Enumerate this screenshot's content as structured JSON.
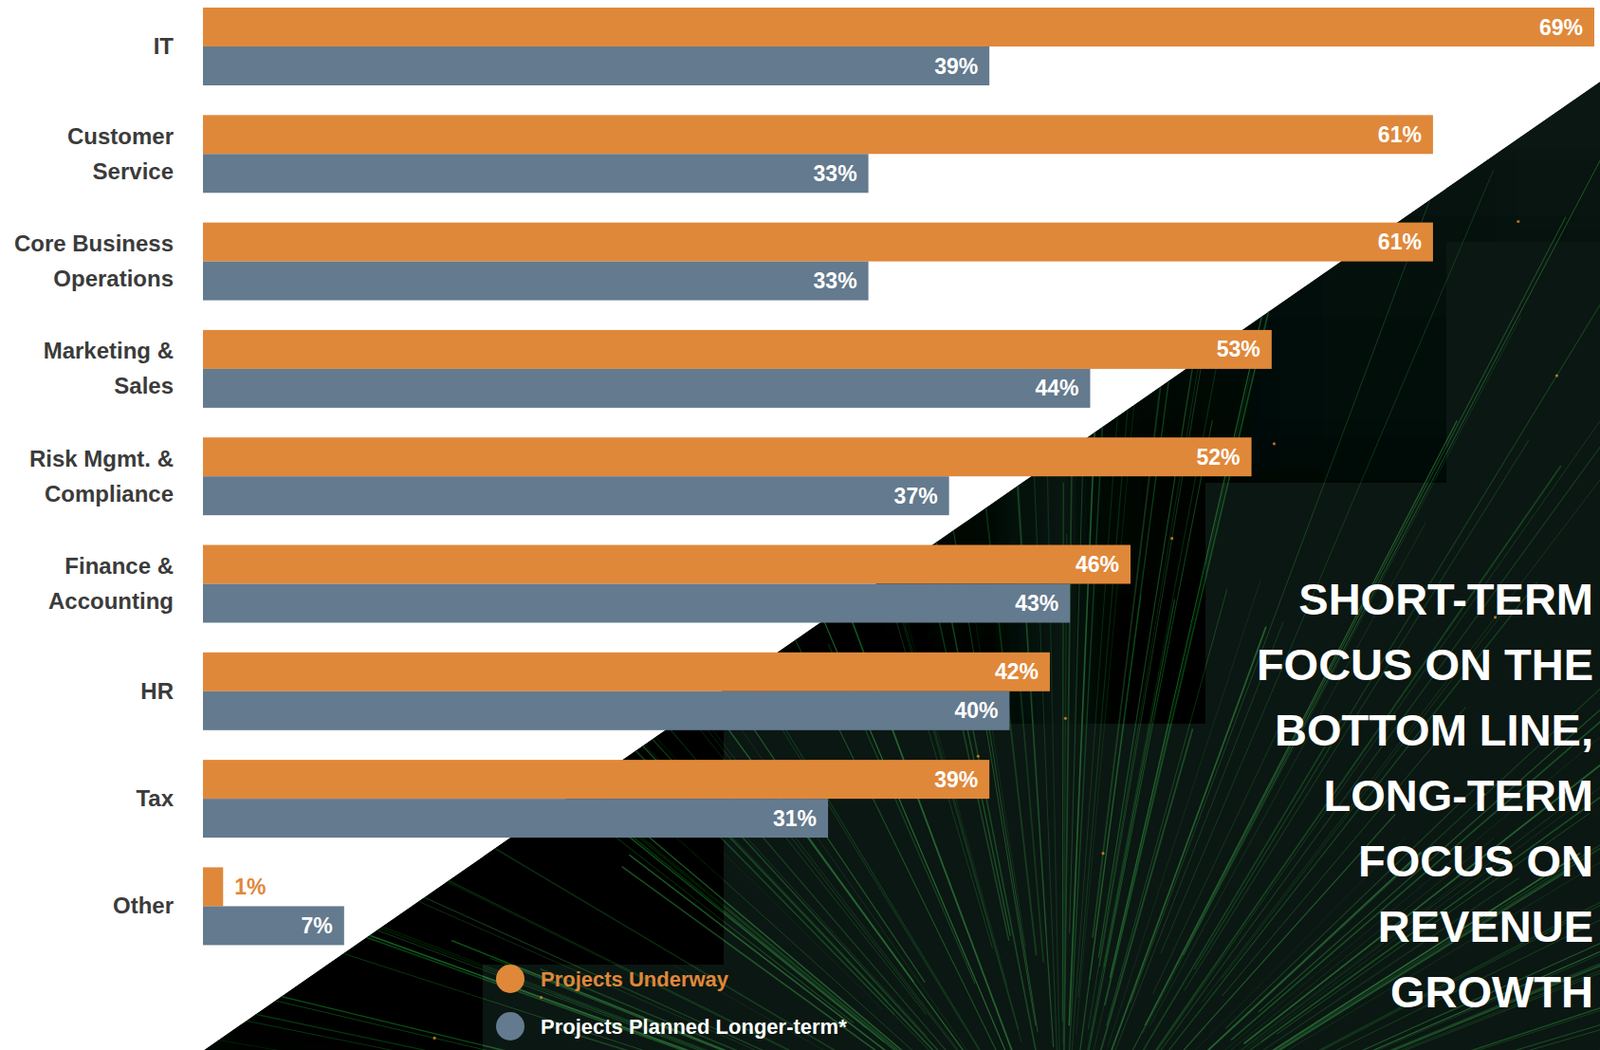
{
  "chart_data": {
    "type": "bar",
    "orientation": "horizontal",
    "categories": [
      "IT",
      "Customer Service",
      "Core Business Operations",
      "Marketing & Sales",
      "Risk Mgmt. & Compliance",
      "Finance & Accounting",
      "HR",
      "Tax",
      "Other"
    ],
    "series": [
      {
        "name": "Projects Underway",
        "color": "#e0883a",
        "values": [
          69,
          61,
          61,
          53,
          52,
          46,
          42,
          39,
          1
        ],
        "value_labels": [
          "69%",
          "61%",
          "61%",
          "53%",
          "52%",
          "46%",
          "42%",
          "39%",
          "1%"
        ]
      },
      {
        "name": "Projects Planned Longer-term*",
        "color": "#647a8e",
        "values": [
          39,
          33,
          33,
          44,
          37,
          43,
          40,
          31,
          7
        ],
        "value_labels": [
          "39%",
          "33%",
          "33%",
          "44%",
          "37%",
          "43%",
          "40%",
          "31%",
          "7%"
        ]
      }
    ],
    "xlim": [
      0,
      69
    ],
    "tick_labels": false,
    "data_labels": true,
    "legend": "bottom",
    "annotations": [
      "SHORT-TERM FOCUS ON THE BOTTOM LINE, LONG-TERM FOCUS ON REVENUE GROWTH"
    ]
  }
}
